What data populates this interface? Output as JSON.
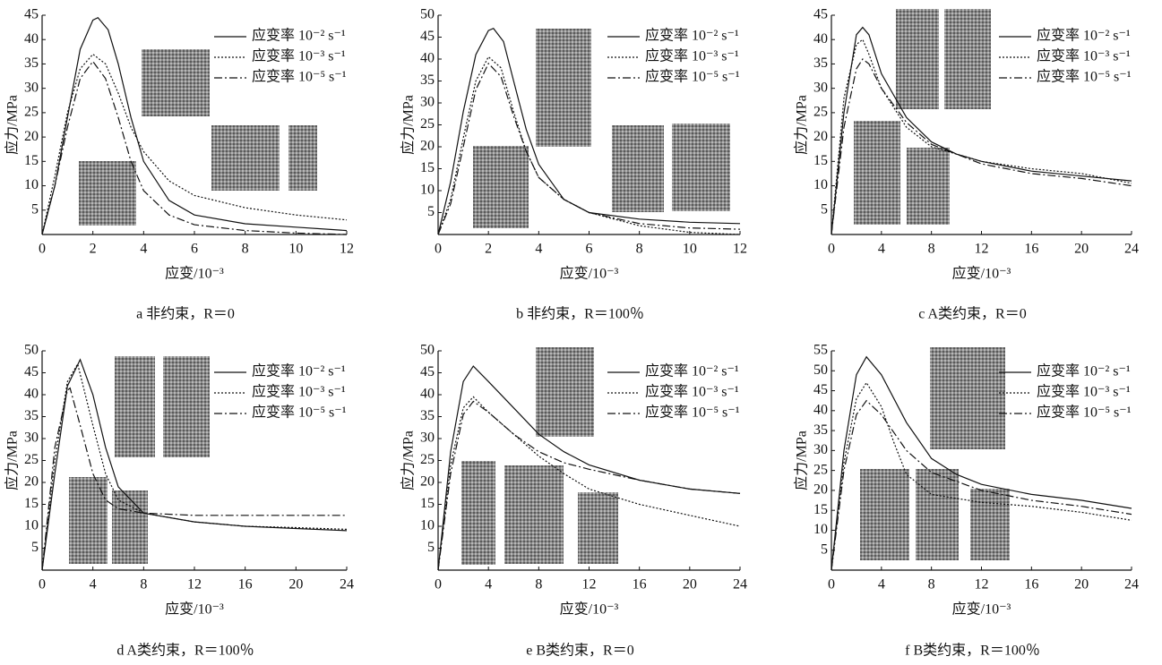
{
  "chart_data": [
    {
      "type": "line",
      "caption": "a 非约束，R＝0",
      "xlabel": "应变/10⁻³",
      "ylabel": "应力/MPa",
      "xlim": [
        0,
        12
      ],
      "xticks": [
        0,
        2,
        4,
        6,
        8,
        10,
        12
      ],
      "ylim": [
        0,
        45
      ],
      "yticks": [
        5,
        10,
        15,
        20,
        25,
        30,
        35,
        40,
        45
      ],
      "series": [
        {
          "name": "应变率 10⁻² s⁻¹",
          "color": "#111111",
          "style": "solid",
          "x": [
            0,
            0.5,
            1,
            1.5,
            2,
            2.2,
            2.6,
            3,
            3.5,
            4,
            5,
            6,
            8,
            10,
            12
          ],
          "values": [
            0,
            10,
            24,
            38,
            44,
            44.5,
            42,
            35,
            24,
            15,
            7,
            4,
            2.2,
            1.5,
            0.8
          ]
        },
        {
          "name": "应变率 10⁻³ s⁻¹",
          "color": "#111111",
          "style": "dotted",
          "x": [
            0,
            0.5,
            1,
            1.5,
            2,
            2.5,
            3,
            3.5,
            4,
            5,
            6,
            8,
            10,
            12
          ],
          "values": [
            0,
            12,
            25,
            34,
            37,
            35,
            29,
            22,
            17,
            11,
            8,
            5.5,
            4,
            3
          ]
        },
        {
          "name": "应变率 10⁻⁵ s⁻¹",
          "color": "#111111",
          "style": "dashdot",
          "x": [
            0,
            0.5,
            1,
            1.5,
            2,
            2.5,
            3,
            3.5,
            4,
            5,
            6,
            8,
            10,
            12
          ],
          "values": [
            0,
            10,
            22,
            32,
            35.5,
            32,
            24,
            15,
            9,
            4,
            2,
            0.8,
            0.3,
            0
          ]
        }
      ]
    },
    {
      "type": "line",
      "caption": "b 非约束，R＝100％",
      "xlabel": "应变/10⁻³",
      "ylabel": "应力/MPa",
      "xlim": [
        0,
        12
      ],
      "xticks": [
        0,
        2,
        4,
        6,
        8,
        10,
        12
      ],
      "ylim": [
        0,
        50
      ],
      "yticks": [
        5,
        10,
        15,
        20,
        25,
        30,
        35,
        40,
        45,
        50
      ],
      "series": [
        {
          "name": "应变率 10⁻² s⁻¹",
          "color": "#111111",
          "style": "solid",
          "x": [
            0,
            0.5,
            1,
            1.5,
            2,
            2.2,
            2.6,
            3,
            3.5,
            4,
            5,
            6,
            8,
            10,
            12
          ],
          "values": [
            0,
            12,
            28,
            41,
            46.5,
            47,
            44,
            35,
            24,
            16,
            8,
            5,
            3.5,
            2.8,
            2.5
          ]
        },
        {
          "name": "应变率 10⁻³ s⁻¹",
          "color": "#111111",
          "style": "dotted",
          "x": [
            0,
            0.5,
            1,
            1.5,
            2,
            2.5,
            3,
            3.5,
            4,
            5,
            6,
            8,
            10,
            12
          ],
          "values": [
            0,
            8,
            22,
            35,
            40.5,
            38,
            28,
            19,
            13,
            8,
            5,
            2,
            0.5,
            0
          ]
        },
        {
          "name": "应变率 10⁻⁵ s⁻¹",
          "color": "#111111",
          "style": "dashdot",
          "x": [
            0,
            0.5,
            1,
            1.5,
            2,
            2.5,
            3,
            3.5,
            4,
            5,
            6,
            8,
            10,
            12
          ],
          "values": [
            0,
            7,
            20,
            33,
            39,
            36,
            27,
            19,
            13,
            8,
            5,
            2.5,
            1.5,
            1.2
          ]
        }
      ]
    },
    {
      "type": "line",
      "caption": "c A类约束，R＝0",
      "xlabel": "应变/10⁻³",
      "ylabel": "应力/MPa",
      "xlim": [
        0,
        24
      ],
      "xticks": [
        0,
        4,
        8,
        12,
        16,
        20,
        24
      ],
      "ylim": [
        0,
        45
      ],
      "yticks": [
        5,
        10,
        15,
        20,
        25,
        30,
        35,
        40,
        45
      ],
      "series": [
        {
          "name": "应变率 10⁻² s⁻¹",
          "color": "#111111",
          "style": "solid",
          "x": [
            0,
            1,
            2,
            2.5,
            3,
            4,
            6,
            8,
            10,
            12,
            16,
            20,
            24
          ],
          "values": [
            0,
            25,
            41,
            42.5,
            41,
            33,
            24,
            19,
            16.5,
            15,
            13,
            12,
            11
          ]
        },
        {
          "name": "应变率 10⁻³ s⁻¹",
          "color": "#111111",
          "style": "dotted",
          "x": [
            0,
            1,
            2,
            2.5,
            3,
            4,
            6,
            8,
            12,
            16,
            20,
            24
          ],
          "values": [
            0,
            28,
            39,
            40,
            37,
            30,
            22,
            18,
            15,
            13.5,
            12.5,
            10.5
          ]
        },
        {
          "name": "应变率 10⁻⁵ s⁻¹",
          "color": "#111111",
          "style": "dashdot",
          "x": [
            0,
            1,
            2,
            2.5,
            3,
            4,
            6,
            8,
            12,
            16,
            20,
            24
          ],
          "values": [
            0,
            22,
            34,
            36,
            35,
            30,
            23,
            18.5,
            14.5,
            12.5,
            11.5,
            10
          ]
        }
      ]
    },
    {
      "type": "line",
      "caption": "d A类约束，R＝100％",
      "xlabel": "应变/10⁻³",
      "ylabel": "应力/MPa",
      "xlim": [
        0,
        24
      ],
      "xticks": [
        0,
        4,
        8,
        12,
        16,
        20,
        24
      ],
      "ylim": [
        0,
        50
      ],
      "yticks": [
        5,
        10,
        15,
        20,
        25,
        30,
        35,
        40,
        45,
        50
      ],
      "series": [
        {
          "name": "应变率 10⁻² s⁻¹",
          "color": "#111111",
          "style": "solid",
          "x": [
            0,
            1,
            2,
            3,
            4,
            5,
            6,
            8,
            12,
            16,
            20,
            24
          ],
          "values": [
            0,
            22,
            42,
            48,
            40,
            28,
            19,
            13,
            11,
            10,
            9.5,
            9
          ]
        },
        {
          "name": "应变率 10⁻³ s⁻¹",
          "color": "#111111",
          "style": "dotted",
          "x": [
            0,
            1,
            2,
            2.8,
            4,
            5,
            6,
            8,
            12,
            16,
            20,
            24
          ],
          "values": [
            0,
            25,
            43,
            47,
            33,
            22,
            16,
            13,
            11,
            10,
            9.7,
            9.3
          ]
        },
        {
          "name": "应变率 10⁻⁵ s⁻¹",
          "color": "#111111",
          "style": "dashdot",
          "x": [
            0,
            1,
            2,
            2.2,
            3,
            4,
            5,
            6,
            8,
            12,
            16,
            20,
            24
          ],
          "values": [
            0,
            28,
            41,
            41.5,
            33,
            22,
            16,
            14,
            13,
            12.5,
            12.5,
            12.5,
            12.5
          ]
        }
      ]
    },
    {
      "type": "line",
      "caption": "e B类约束，R＝0",
      "xlabel": "应变/10⁻³",
      "ylabel": "应力/MPa",
      "xlim": [
        0,
        24
      ],
      "xticks": [
        0,
        4,
        8,
        12,
        16,
        20,
        24
      ],
      "ylim": [
        0,
        50
      ],
      "yticks": [
        5,
        10,
        15,
        20,
        25,
        30,
        35,
        40,
        45,
        50
      ],
      "series": [
        {
          "name": "应变率 10⁻² s⁻¹",
          "color": "#111111",
          "style": "solid",
          "x": [
            0,
            1,
            2,
            2.8,
            4,
            6,
            8,
            10,
            12,
            16,
            20,
            24
          ],
          "values": [
            0,
            27,
            43,
            46.5,
            43,
            37,
            31,
            27,
            24,
            20.5,
            18.5,
            17.5
          ]
        },
        {
          "name": "应变率 10⁻³ s⁻¹",
          "color": "#111111",
          "style": "dotted",
          "x": [
            0,
            1,
            2,
            2.8,
            4,
            6,
            8,
            10,
            12,
            16,
            20,
            24
          ],
          "values": [
            0,
            24,
            37,
            39.5,
            36,
            31,
            26,
            22,
            18.5,
            15,
            12.5,
            10
          ]
        },
        {
          "name": "应变率 10⁻⁵ s⁻¹",
          "color": "#111111",
          "style": "dashdot",
          "x": [
            0,
            1,
            2,
            2.8,
            4,
            6,
            8,
            10,
            12,
            16,
            20,
            24
          ],
          "values": [
            0,
            22,
            35.5,
            38.5,
            36,
            31,
            27,
            24.5,
            23,
            20.5,
            18.5,
            17.5
          ]
        }
      ]
    },
    {
      "type": "line",
      "caption": "f B类约束，R＝100％",
      "xlabel": "应变/10⁻³",
      "ylabel": "应力/MPa",
      "xlim": [
        0,
        24
      ],
      "xticks": [
        0,
        4,
        8,
        12,
        16,
        20,
        24
      ],
      "ylim": [
        0,
        55
      ],
      "yticks": [
        5,
        10,
        15,
        20,
        25,
        30,
        35,
        40,
        45,
        50,
        55
      ],
      "series": [
        {
          "name": "应变率 10⁻² s⁻¹",
          "color": "#111111",
          "style": "solid",
          "x": [
            0,
            1,
            2,
            2.8,
            4,
            6,
            8,
            10,
            12,
            16,
            20,
            24
          ],
          "values": [
            0,
            30,
            49,
            53.5,
            49,
            37,
            28,
            24,
            21.5,
            19,
            17.5,
            15.5
          ]
        },
        {
          "name": "应变率 10⁻³ s⁻¹",
          "color": "#111111",
          "style": "dotted",
          "x": [
            0,
            1,
            2,
            2.8,
            4,
            5,
            6,
            8,
            12,
            16,
            20,
            24
          ],
          "values": [
            0,
            27,
            43,
            47,
            41,
            32,
            24,
            19,
            17,
            16,
            14.5,
            12.5
          ]
        },
        {
          "name": "应变率 10⁻⁵ s⁻¹",
          "color": "#111111",
          "style": "dashdot",
          "x": [
            0,
            1,
            2,
            2.8,
            4,
            6,
            8,
            12,
            16,
            20,
            24
          ],
          "values": [
            0,
            25,
            39,
            42.5,
            39,
            30,
            24.5,
            20,
            17.5,
            16,
            14
          ]
        }
      ]
    }
  ]
}
